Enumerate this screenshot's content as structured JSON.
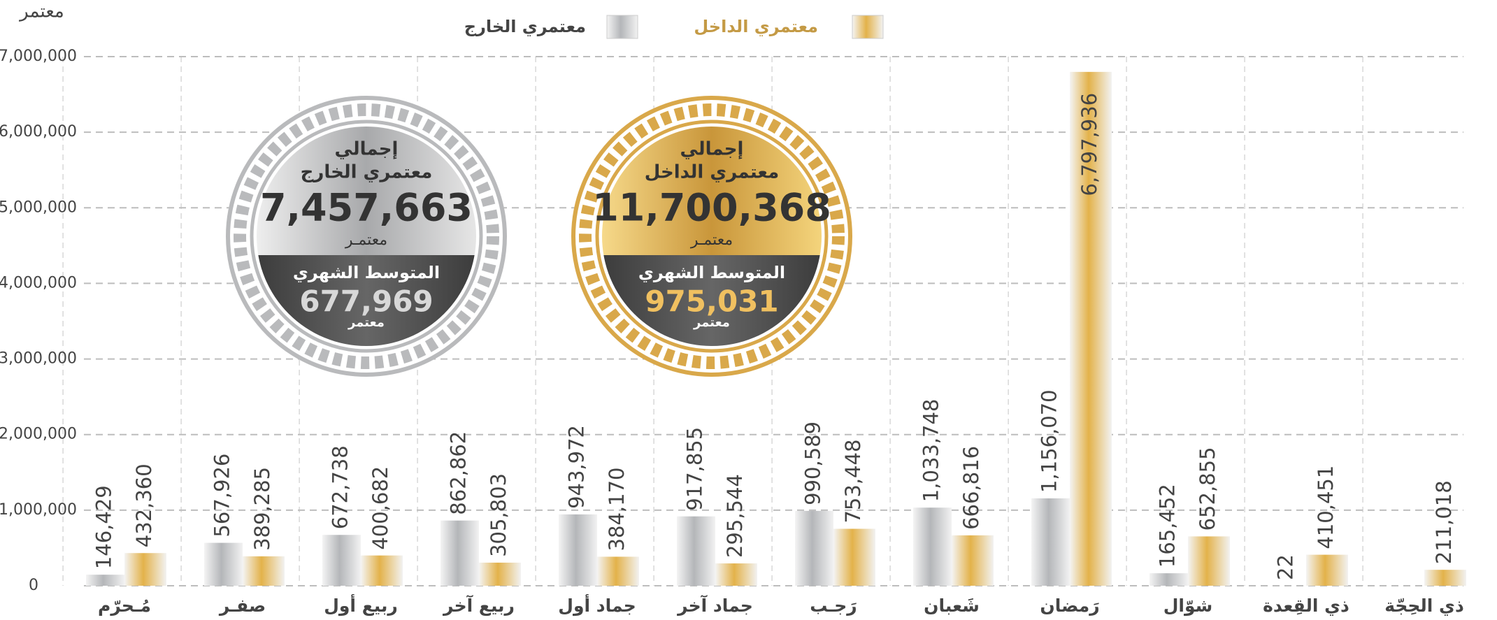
{
  "chart_data": {
    "type": "bar",
    "y_label": "معتمر",
    "categories": [
      "مُـحرّم",
      "صفـر",
      "ربيع أول",
      "ربيع آخر",
      "جماد أول",
      "جماد آخر",
      "رَجـب",
      "شَعبان",
      "رَمضان",
      "شوّال",
      "ذي القِعدة",
      "ذي الحِجّة"
    ],
    "series": [
      {
        "name": "معتمري الخارج",
        "color": "#b4b6b9",
        "values": [
          146429,
          567926,
          672738,
          862862,
          943972,
          917855,
          990589,
          1033748,
          1156070,
          165452,
          22,
          null
        ],
        "value_labels": [
          "146,429",
          "567,926",
          "672,738",
          "862,862",
          "943,972",
          "917,855",
          "990,589",
          "1,033,748",
          "1,156,070",
          "165,452",
          "22",
          null
        ]
      },
      {
        "name": "معتمري الداخل",
        "color": "#e3b24a",
        "values": [
          432360,
          389285,
          400682,
          305803,
          384170,
          295544,
          753448,
          666816,
          6797936,
          652855,
          410451,
          211018
        ],
        "value_labels": [
          "432,360",
          "389,285",
          "400,682",
          "305,803",
          "384,170",
          "295,544",
          "753,448",
          "666,816",
          "6,797,936",
          "652,855",
          "410,451",
          "211,018"
        ]
      }
    ],
    "ylim": [
      0,
      7000000
    ],
    "yticks": [
      0,
      {
        "value": 1000000,
        "label": "1,000,000"
      },
      {
        "value": 2000000,
        "label": "2,000,000"
      },
      {
        "value": 3000000,
        "label": "3,000,000"
      },
      {
        "value": 4000000,
        "label": "4,000,000"
      },
      {
        "value": 5000000,
        "label": "5,000,000"
      },
      {
        "value": 6000000,
        "label": "6,000,000"
      },
      {
        "value": 7000000,
        "label": "7,000,000"
      }
    ],
    "grid": true,
    "badges": [
      {
        "heading": "إجمالي",
        "subheading": "معتمري الخارج",
        "total": "7,457,663",
        "unit": "معتمـر",
        "avg_label": "المتوسط الشهري",
        "avg": "677,969",
        "avg_unit": "معتمر"
      },
      {
        "heading": "إجمالي",
        "subheading": "معتمري الداخل",
        "total": "11,700,368",
        "unit": "معتمـر",
        "avg_label": "المتوسط الشهري",
        "avg": "975,031",
        "avg_unit": "معتمر"
      }
    ]
  }
}
